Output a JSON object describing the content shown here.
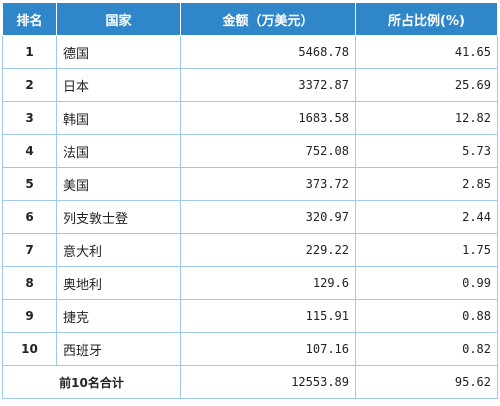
{
  "header": {
    "rank": "排名",
    "country": "国家",
    "amount": "金额（万美元）",
    "share": "所占比例(%)"
  },
  "rows": [
    {
      "rank": "1",
      "country": "德国",
      "amount": "5468.78",
      "share": "41.65"
    },
    {
      "rank": "2",
      "country": "日本",
      "amount": "3372.87",
      "share": "25.69"
    },
    {
      "rank": "3",
      "country": "韩国",
      "amount": "1683.58",
      "share": "12.82"
    },
    {
      "rank": "4",
      "country": "法国",
      "amount": "752.08",
      "share": "5.73"
    },
    {
      "rank": "5",
      "country": "美国",
      "amount": "373.72",
      "share": "2.85"
    },
    {
      "rank": "6",
      "country": "列支敦士登",
      "amount": "320.97",
      "share": "2.44"
    },
    {
      "rank": "7",
      "country": "意大利",
      "amount": "229.22",
      "share": "1.75"
    },
    {
      "rank": "8",
      "country": "奥地利",
      "amount": "129.6",
      "share": "0.99"
    },
    {
      "rank": "9",
      "country": "捷克",
      "amount": "115.91",
      "share": "0.88"
    },
    {
      "rank": "10",
      "country": "西班牙",
      "amount": "107.16",
      "share": "0.82"
    }
  ],
  "total": {
    "label": "前10名合计",
    "amount": "12553.89",
    "share": "95.62"
  }
}
